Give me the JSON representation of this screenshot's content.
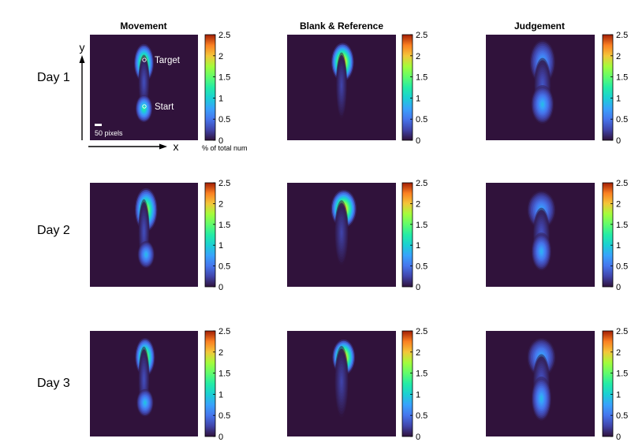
{
  "chart_data": {
    "type": "heatmap",
    "columns": [
      "Movement",
      "Blank & Reference",
      "Judgement"
    ],
    "rows": [
      "Day 1",
      "Day 2",
      "Day 3"
    ],
    "colorbar": {
      "min": 0,
      "max": 2.5,
      "ticks": [
        "2.5",
        "2",
        "1.5",
        "1",
        "0.5",
        "0"
      ],
      "label": "% of total  num",
      "colormap": "turbo"
    },
    "background_color": "#30123b",
    "axes": {
      "x_label": "x",
      "y_label": "y",
      "scale_bar": "50 pixels"
    },
    "annotations": {
      "target": "Target",
      "start": "Start"
    },
    "panels": [
      {
        "row": "Day 1",
        "column": "Movement",
        "blobs": [
          {
            "x": 0.5,
            "y": 0.27,
            "peak": 2.0,
            "sx": 0.035,
            "sy": 0.07
          },
          {
            "x": 0.5,
            "y": 0.45,
            "peak": 0.3,
            "sx": 0.02,
            "sy": 0.1
          },
          {
            "x": 0.5,
            "y": 0.7,
            "peak": 1.3,
            "sx": 0.03,
            "sy": 0.05
          }
        ]
      },
      {
        "row": "Day 1",
        "column": "Blank & Reference",
        "blobs": [
          {
            "x": 0.51,
            "y": 0.26,
            "peak": 2.4,
            "sx": 0.04,
            "sy": 0.07
          },
          {
            "x": 0.5,
            "y": 0.48,
            "peak": 0.25,
            "sx": 0.02,
            "sy": 0.12
          }
        ]
      },
      {
        "row": "Day 1",
        "column": "Judgement",
        "blobs": [
          {
            "x": 0.52,
            "y": 0.26,
            "peak": 0.8,
            "sx": 0.045,
            "sy": 0.08
          },
          {
            "x": 0.52,
            "y": 0.48,
            "peak": 0.35,
            "sx": 0.03,
            "sy": 0.1
          },
          {
            "x": 0.52,
            "y": 0.66,
            "peak": 0.9,
            "sx": 0.04,
            "sy": 0.07
          }
        ]
      },
      {
        "row": "Day 2",
        "column": "Movement",
        "blobs": [
          {
            "x": 0.52,
            "y": 0.26,
            "peak": 1.9,
            "sx": 0.04,
            "sy": 0.08
          },
          {
            "x": 0.5,
            "y": 0.47,
            "peak": 0.3,
            "sx": 0.02,
            "sy": 0.12
          },
          {
            "x": 0.52,
            "y": 0.69,
            "peak": 0.9,
            "sx": 0.03,
            "sy": 0.05
          }
        ]
      },
      {
        "row": "Day 2",
        "column": "Blank & Reference",
        "blobs": [
          {
            "x": 0.52,
            "y": 0.25,
            "peak": 2.3,
            "sx": 0.045,
            "sy": 0.07
          },
          {
            "x": 0.5,
            "y": 0.48,
            "peak": 0.25,
            "sx": 0.025,
            "sy": 0.12
          }
        ]
      },
      {
        "row": "Day 2",
        "column": "Judgement",
        "blobs": [
          {
            "x": 0.51,
            "y": 0.26,
            "peak": 0.8,
            "sx": 0.05,
            "sy": 0.07
          },
          {
            "x": 0.51,
            "y": 0.5,
            "peak": 0.35,
            "sx": 0.03,
            "sy": 0.1
          },
          {
            "x": 0.51,
            "y": 0.66,
            "peak": 0.85,
            "sx": 0.035,
            "sy": 0.07
          }
        ]
      },
      {
        "row": "Day 3",
        "column": "Movement",
        "blobs": [
          {
            "x": 0.51,
            "y": 0.25,
            "peak": 2.0,
            "sx": 0.035,
            "sy": 0.07
          },
          {
            "x": 0.5,
            "y": 0.46,
            "peak": 0.3,
            "sx": 0.02,
            "sy": 0.12
          },
          {
            "x": 0.51,
            "y": 0.68,
            "peak": 0.95,
            "sx": 0.03,
            "sy": 0.05
          }
        ]
      },
      {
        "row": "Day 3",
        "column": "Blank & Reference",
        "blobs": [
          {
            "x": 0.52,
            "y": 0.25,
            "peak": 2.4,
            "sx": 0.04,
            "sy": 0.065
          },
          {
            "x": 0.5,
            "y": 0.48,
            "peak": 0.25,
            "sx": 0.025,
            "sy": 0.13
          }
        ]
      },
      {
        "row": "Day 3",
        "column": "Judgement",
        "blobs": [
          {
            "x": 0.51,
            "y": 0.25,
            "peak": 0.85,
            "sx": 0.05,
            "sy": 0.07
          },
          {
            "x": 0.51,
            "y": 0.48,
            "peak": 0.35,
            "sx": 0.03,
            "sy": 0.1
          },
          {
            "x": 0.51,
            "y": 0.64,
            "peak": 0.9,
            "sx": 0.035,
            "sy": 0.08
          }
        ]
      }
    ]
  }
}
